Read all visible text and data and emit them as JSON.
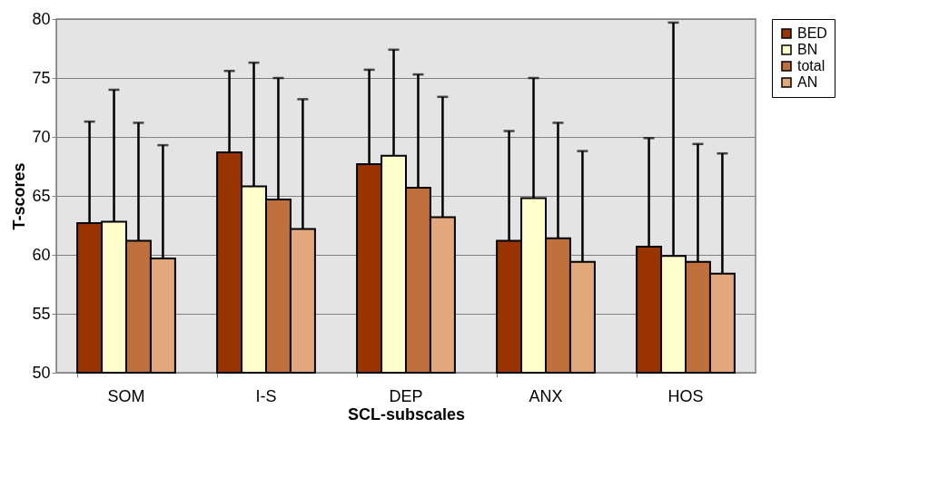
{
  "chart_data": {
    "type": "bar",
    "xlabel": "SCL-subscales",
    "ylabel": "T-scores",
    "categories": [
      "SOM",
      "I-S",
      "DEP",
      "ANX",
      "HOS"
    ],
    "series": [
      {
        "name": "BED",
        "color": "#993300",
        "values": [
          62.7,
          68.7,
          67.7,
          61.2,
          60.7
        ],
        "errors": [
          [
            62.7,
            71.3
          ],
          [
            68.7,
            75.6
          ],
          [
            67.7,
            75.7
          ],
          [
            61.2,
            70.5
          ],
          [
            60.7,
            69.9
          ]
        ]
      },
      {
        "name": "BN",
        "color": "#ffffcc",
        "values": [
          62.8,
          65.8,
          68.4,
          64.8,
          59.9
        ],
        "errors": [
          [
            62.8,
            74.0
          ],
          [
            65.8,
            76.3
          ],
          [
            68.4,
            77.4
          ],
          [
            64.8,
            75.0
          ],
          [
            59.9,
            79.7
          ]
        ]
      },
      {
        "name": "total",
        "color": "#c0703c",
        "values": [
          61.2,
          64.7,
          65.7,
          61.4,
          59.4
        ],
        "errors": [
          [
            61.2,
            71.2
          ],
          [
            64.7,
            75.0
          ],
          [
            65.7,
            75.3
          ],
          [
            61.4,
            71.2
          ],
          [
            59.4,
            69.4
          ]
        ]
      },
      {
        "name": "AN",
        "color": "#e2a77a",
        "values": [
          59.7,
          62.2,
          63.2,
          59.4,
          58.4
        ],
        "errors": [
          [
            59.7,
            69.3
          ],
          [
            62.2,
            73.2
          ],
          [
            63.2,
            73.4
          ],
          [
            59.4,
            68.8
          ],
          [
            58.4,
            68.6
          ]
        ]
      }
    ],
    "ylim": [
      50,
      80
    ],
    "yticks": [
      50,
      55,
      60,
      65,
      70,
      75,
      80
    ],
    "grid": "y",
    "legend": "right"
  }
}
